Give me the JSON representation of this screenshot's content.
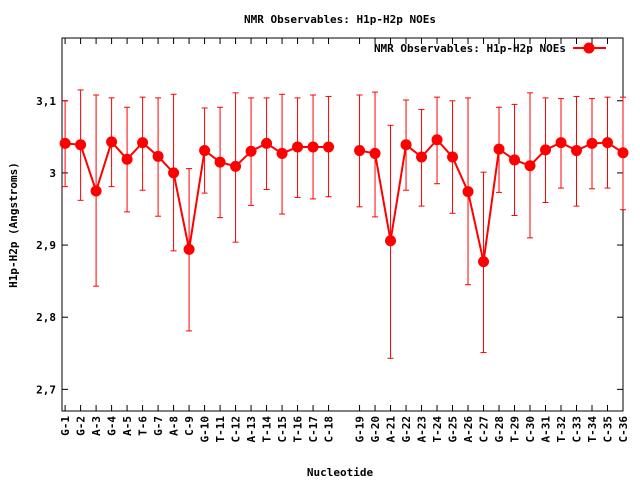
{
  "chart_data": {
    "type": "line",
    "title": "NMR Observables: H1p-H2p NOEs",
    "xlabel": "Nucleotide",
    "ylabel": "H1p-H2p (Angstroms)",
    "ylim": [
      2.67,
      3.187
    ],
    "yticks": [
      2.7,
      2.8,
      2.9,
      3,
      3.1
    ],
    "ytick_labels": [
      "2,7",
      "2,8",
      "2,9",
      "3",
      "3,1"
    ],
    "xlim": [
      0.8,
      37
    ],
    "grid": false,
    "legend_position": "top-right",
    "colors": {
      "series": "#ff0000",
      "axis": "#000000"
    },
    "series": [
      {
        "name": "NMR Observables: H1p-H2p NOEs",
        "points": [
          {
            "x": 1,
            "label": "G-1",
            "y": 3.041,
            "err_lo": 2.981,
            "err_hi": 3.1
          },
          {
            "x": 2,
            "label": "G-2",
            "y": 3.039,
            "err_lo": 2.962,
            "err_hi": 3.115
          },
          {
            "x": 3,
            "label": "A-3",
            "y": 2.975,
            "err_lo": 2.843,
            "err_hi": 3.108
          },
          {
            "x": 4,
            "label": "G-4",
            "y": 3.043,
            "err_lo": 2.981,
            "err_hi": 3.104
          },
          {
            "x": 5,
            "label": "A-5",
            "y": 3.019,
            "err_lo": 2.946,
            "err_hi": 3.091
          },
          {
            "x": 6,
            "label": "T-6",
            "y": 3.042,
            "err_lo": 2.976,
            "err_hi": 3.105
          },
          {
            "x": 7,
            "label": "G-7",
            "y": 3.023,
            "err_lo": 2.94,
            "err_hi": 3.104
          },
          {
            "x": 8,
            "label": "A-8",
            "y": 3.0,
            "err_lo": 2.892,
            "err_hi": 3.109
          },
          {
            "x": 9,
            "label": "C-9",
            "y": 2.894,
            "err_lo": 2.781,
            "err_hi": 3.006
          },
          {
            "x": 10,
            "label": "G-10",
            "y": 3.031,
            "err_lo": 2.972,
            "err_hi": 3.09
          },
          {
            "x": 11,
            "label": "T-11",
            "y": 3.015,
            "err_lo": 2.938,
            "err_hi": 3.091
          },
          {
            "x": 12,
            "label": "C-12",
            "y": 3.009,
            "err_lo": 2.904,
            "err_hi": 3.111
          },
          {
            "x": 13,
            "label": "A-13",
            "y": 3.03,
            "err_lo": 2.955,
            "err_hi": 3.104
          },
          {
            "x": 14,
            "label": "T-14",
            "y": 3.041,
            "err_lo": 2.977,
            "err_hi": 3.104
          },
          {
            "x": 15,
            "label": "C-15",
            "y": 3.027,
            "err_lo": 2.943,
            "err_hi": 3.109
          },
          {
            "x": 16,
            "label": "T-16",
            "y": 3.036,
            "err_lo": 2.966,
            "err_hi": 3.104
          },
          {
            "x": 17,
            "label": "C-17",
            "y": 3.036,
            "err_lo": 2.964,
            "err_hi": 3.108
          },
          {
            "x": 18,
            "label": "C-18",
            "y": 3.036,
            "err_lo": 2.967,
            "err_hi": 3.106
          },
          {
            "x": 20,
            "label": "G-19",
            "y": 3.031,
            "err_lo": 2.953,
            "err_hi": 3.108
          },
          {
            "x": 21,
            "label": "G-20",
            "y": 3.027,
            "err_lo": 2.939,
            "err_hi": 3.112
          },
          {
            "x": 22,
            "label": "A-21",
            "y": 2.906,
            "err_lo": 2.743,
            "err_hi": 3.066
          },
          {
            "x": 23,
            "label": "G-22",
            "y": 3.039,
            "err_lo": 2.976,
            "err_hi": 3.101
          },
          {
            "x": 24,
            "label": "A-23",
            "y": 3.022,
            "err_lo": 2.954,
            "err_hi": 3.088
          },
          {
            "x": 25,
            "label": "T-24",
            "y": 3.046,
            "err_lo": 2.985,
            "err_hi": 3.105
          },
          {
            "x": 26,
            "label": "G-25",
            "y": 3.022,
            "err_lo": 2.944,
            "err_hi": 3.1
          },
          {
            "x": 27,
            "label": "A-26",
            "y": 2.974,
            "err_lo": 2.845,
            "err_hi": 3.104
          },
          {
            "x": 28,
            "label": "C-27",
            "y": 2.877,
            "err_lo": 2.751,
            "err_hi": 3.001
          },
          {
            "x": 29,
            "label": "G-28",
            "y": 3.033,
            "err_lo": 2.973,
            "err_hi": 3.091
          },
          {
            "x": 30,
            "label": "T-29",
            "y": 3.018,
            "err_lo": 2.941,
            "err_hi": 3.095
          },
          {
            "x": 31,
            "label": "C-30",
            "y": 3.01,
            "err_lo": 2.91,
            "err_hi": 3.111
          },
          {
            "x": 32,
            "label": "A-31",
            "y": 3.032,
            "err_lo": 2.959,
            "err_hi": 3.104
          },
          {
            "x": 33,
            "label": "T-32",
            "y": 3.042,
            "err_lo": 2.979,
            "err_hi": 3.103
          },
          {
            "x": 34,
            "label": "C-33",
            "y": 3.031,
            "err_lo": 2.954,
            "err_hi": 3.106
          },
          {
            "x": 35,
            "label": "T-34",
            "y": 3.041,
            "err_lo": 2.978,
            "err_hi": 3.103
          },
          {
            "x": 36,
            "label": "C-35",
            "y": 3.042,
            "err_lo": 2.979,
            "err_hi": 3.105
          },
          {
            "x": 37,
            "label": "C-36",
            "y": 3.028,
            "err_lo": 2.949,
            "err_hi": 3.105
          }
        ]
      }
    ]
  }
}
